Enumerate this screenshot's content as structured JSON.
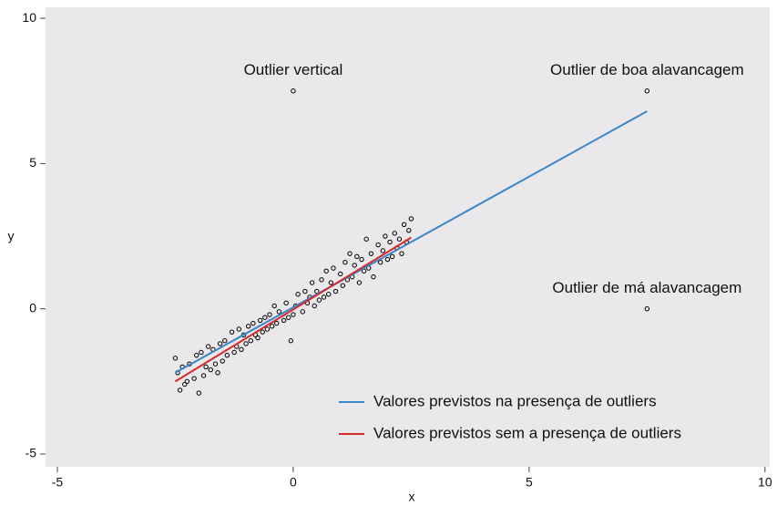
{
  "chart_data": {
    "type": "scatter",
    "x_label": "x",
    "y_label": "y",
    "xlim": [
      -5.25,
      10.1
    ],
    "ylim": [
      -5.44,
      10.38
    ],
    "xticks": [
      -5,
      0,
      5,
      10
    ],
    "yticks": [
      -5,
      0,
      5,
      10
    ],
    "grid": false,
    "legend": "lower right",
    "points": {
      "color": "#000000",
      "x": [
        -2.5,
        -2.45,
        -2.4,
        -2.35,
        -2.3,
        -2.25,
        -2.2,
        -2.1,
        -2.05,
        -2.0,
        -1.95,
        -1.9,
        -1.85,
        -1.8,
        -1.75,
        -1.7,
        -1.65,
        -1.6,
        -1.55,
        -1.5,
        -1.45,
        -1.4,
        -1.3,
        -1.25,
        -1.2,
        -1.15,
        -1.1,
        -1.05,
        -1.0,
        -0.95,
        -0.9,
        -0.85,
        -0.8,
        -0.75,
        -0.7,
        -0.65,
        -0.6,
        -0.55,
        -0.5,
        -0.45,
        -0.4,
        -0.35,
        -0.3,
        -0.2,
        -0.15,
        -0.1,
        -0.05,
        0,
        0.05,
        0.1,
        0.2,
        0.25,
        0.3,
        0.35,
        0.4,
        0.45,
        0.5,
        0.55,
        0.6,
        0.65,
        0.7,
        0.75,
        0.8,
        0.85,
        0.9,
        1.0,
        1.05,
        1.1,
        1.15,
        1.2,
        1.25,
        1.3,
        1.35,
        1.4,
        1.45,
        1.5,
        1.55,
        1.6,
        1.65,
        1.7,
        1.8,
        1.85,
        1.9,
        1.95,
        2.0,
        2.05,
        2.1,
        2.15,
        2.2,
        2.25,
        2.3,
        2.35,
        2.4,
        2.45,
        2.5
      ],
      "values": [
        -1.7,
        -2.2,
        -2.8,
        -2.0,
        -2.6,
        -2.5,
        -1.9,
        -2.4,
        -1.6,
        -2.9,
        -1.5,
        -2.3,
        -2.0,
        -1.3,
        -2.1,
        -1.4,
        -1.9,
        -2.2,
        -1.2,
        -1.8,
        -1.1,
        -1.6,
        -0.8,
        -1.5,
        -1.3,
        -0.7,
        -1.4,
        -0.9,
        -1.2,
        -0.6,
        -1.1,
        -0.5,
        -0.9,
        -1.0,
        -0.4,
        -0.8,
        -0.3,
        -0.7,
        -0.2,
        -0.6,
        0.1,
        -0.5,
        -0.1,
        -0.4,
        0.2,
        -0.3,
        -1.1,
        -0.2,
        0.1,
        0.5,
        -0.1,
        0.6,
        0.2,
        0.4,
        0.9,
        0.1,
        0.6,
        0.3,
        1.0,
        0.4,
        1.3,
        0.5,
        0.9,
        1.4,
        0.6,
        1.2,
        0.8,
        1.6,
        1.0,
        1.9,
        1.1,
        1.5,
        1.8,
        0.9,
        1.7,
        1.3,
        2.4,
        1.4,
        1.9,
        1.1,
        2.2,
        1.6,
        2.0,
        2.5,
        1.7,
        2.3,
        1.8,
        2.6,
        2.1,
        2.4,
        1.9,
        2.9,
        2.3,
        2.7,
        3.1
      ]
    },
    "series": [
      {
        "type": "line",
        "name": "Valores previstos na presença de outliers",
        "color": "#3a86c8",
        "x": [
          -2.5,
          7.5
        ],
        "values": [
          -2.2,
          6.8
        ]
      },
      {
        "type": "line",
        "name": "Valores previstos sem a presença de outliers",
        "color": "#d62a2a",
        "x": [
          -2.5,
          2.5
        ],
        "values": [
          -2.5,
          2.45
        ]
      }
    ],
    "annotations": [
      {
        "text": "Outlier vertical",
        "x": 0,
        "y": 7.5
      },
      {
        "text": "Outlier de boa alavancagem",
        "x": 7.5,
        "y": 7.5
      },
      {
        "text": "Outlier de má alavancagem",
        "x": 7.5,
        "y": 0
      }
    ]
  }
}
